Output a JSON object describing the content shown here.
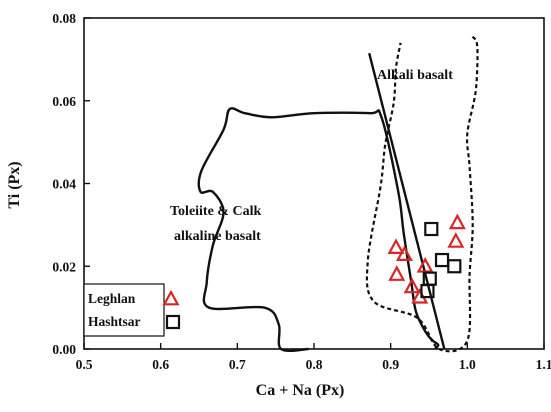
{
  "chart_data": {
    "type": "scatter",
    "title": "",
    "xlabel": "Ca + Na (Px)",
    "ylabel": "Ti (Px)",
    "xlim": [
      0.5,
      1.1
    ],
    "ylim": [
      0.0,
      0.08
    ],
    "x_ticks": [
      0.5,
      0.6,
      0.7,
      0.8,
      0.9,
      1.0,
      1.1
    ],
    "x_tick_labels": [
      "0.5",
      "0.6",
      "0.7",
      "0.8",
      "0.9",
      "1.0",
      "1.1"
    ],
    "y_ticks": [
      0.0,
      0.02,
      0.04,
      0.06,
      0.08
    ],
    "y_tick_labels": [
      "0.00",
      "0.02",
      "0.04",
      "0.06",
      "0.08"
    ],
    "grid": false,
    "legend_position": "bottom-left",
    "series": [
      {
        "name": "Leghlan",
        "marker": "triangle",
        "color": "#d62828",
        "points": [
          [
            0.907,
            0.0245
          ],
          [
            0.918,
            0.0228
          ],
          [
            0.945,
            0.02
          ],
          [
            0.908,
            0.018
          ],
          [
            0.928,
            0.015
          ],
          [
            0.938,
            0.0125
          ],
          [
            0.987,
            0.0305
          ],
          [
            0.985,
            0.026
          ]
        ]
      },
      {
        "name": "Hashtsar",
        "marker": "square",
        "color": "#111111",
        "points": [
          [
            0.953,
            0.029
          ],
          [
            0.967,
            0.0215
          ],
          [
            0.983,
            0.02
          ],
          [
            0.951,
            0.017
          ],
          [
            0.948,
            0.014
          ]
        ]
      }
    ],
    "annotations": [
      {
        "text": "Alkali basalt",
        "region": "alkali"
      },
      {
        "text": "Toleiite & Calk",
        "region": "tholeiite-line-1"
      },
      {
        "text": "alkaline basalt",
        "region": "tholeiite-line-2"
      }
    ],
    "field_boundaries": {
      "tholeiite_calc_alkaline": [
        [
          0.793,
          0.0
        ],
        [
          0.757,
          0.0
        ],
        [
          0.754,
          0.006
        ],
        [
          0.735,
          0.01
        ],
        [
          0.663,
          0.01
        ],
        [
          0.66,
          0.016
        ],
        [
          0.668,
          0.025
        ],
        [
          0.682,
          0.033
        ],
        [
          0.668,
          0.038
        ],
        [
          0.652,
          0.038
        ],
        [
          0.653,
          0.043
        ],
        [
          0.682,
          0.053
        ],
        [
          0.69,
          0.058
        ],
        [
          0.71,
          0.057
        ],
        [
          0.745,
          0.056
        ],
        [
          0.8,
          0.057
        ],
        [
          0.873,
          0.057
        ],
        [
          0.888,
          0.056
        ],
        [
          0.91,
          0.038
        ],
        [
          0.917,
          0.028
        ],
        [
          0.927,
          0.016
        ],
        [
          0.933,
          0.009
        ],
        [
          0.946,
          0.004
        ],
        [
          0.955,
          0.002
        ],
        [
          0.962,
          0.001
        ],
        [
          0.958,
          0.0
        ]
      ],
      "alkali_basalt": [
        [
          1.007,
          0.0755
        ],
        [
          1.013,
          0.073
        ],
        [
          1.011,
          0.0625
        ],
        [
          1.0,
          0.052
        ],
        [
          1.003,
          0.044
        ],
        [
          1.007,
          0.03
        ],
        [
          1.003,
          0.018
        ],
        [
          1.0,
          0.002
        ],
        [
          0.963,
          0.0
        ],
        [
          0.935,
          0.0075
        ],
        [
          0.878,
          0.0115
        ],
        [
          0.87,
          0.021
        ],
        [
          0.887,
          0.0395
        ],
        [
          0.893,
          0.0495
        ],
        [
          0.904,
          0.0595
        ],
        [
          0.907,
          0.068
        ],
        [
          0.913,
          0.074
        ]
      ],
      "divider_line": [
        [
          0.872,
          0.0715
        ],
        [
          0.97,
          0.0
        ]
      ]
    }
  }
}
